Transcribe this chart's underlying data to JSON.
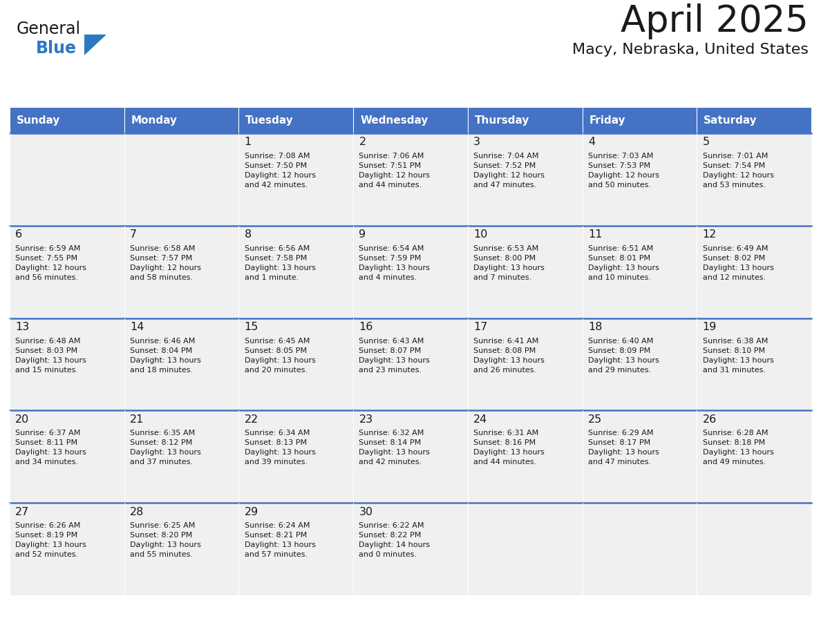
{
  "title": "April 2025",
  "subtitle": "Macy, Nebraska, United States",
  "header_bg": "#4472C4",
  "header_text_color": "#FFFFFF",
  "cell_bg": "#F0F0F0",
  "cell_bg_white": "#FFFFFF",
  "border_color": "#4472C4",
  "text_color": "#1a1a1a",
  "days_of_week": [
    "Sunday",
    "Monday",
    "Tuesday",
    "Wednesday",
    "Thursday",
    "Friday",
    "Saturday"
  ],
  "weeks": [
    [
      {
        "day": "",
        "info": ""
      },
      {
        "day": "",
        "info": ""
      },
      {
        "day": "1",
        "info": "Sunrise: 7:08 AM\nSunset: 7:50 PM\nDaylight: 12 hours\nand 42 minutes."
      },
      {
        "day": "2",
        "info": "Sunrise: 7:06 AM\nSunset: 7:51 PM\nDaylight: 12 hours\nand 44 minutes."
      },
      {
        "day": "3",
        "info": "Sunrise: 7:04 AM\nSunset: 7:52 PM\nDaylight: 12 hours\nand 47 minutes."
      },
      {
        "day": "4",
        "info": "Sunrise: 7:03 AM\nSunset: 7:53 PM\nDaylight: 12 hours\nand 50 minutes."
      },
      {
        "day": "5",
        "info": "Sunrise: 7:01 AM\nSunset: 7:54 PM\nDaylight: 12 hours\nand 53 minutes."
      }
    ],
    [
      {
        "day": "6",
        "info": "Sunrise: 6:59 AM\nSunset: 7:55 PM\nDaylight: 12 hours\nand 56 minutes."
      },
      {
        "day": "7",
        "info": "Sunrise: 6:58 AM\nSunset: 7:57 PM\nDaylight: 12 hours\nand 58 minutes."
      },
      {
        "day": "8",
        "info": "Sunrise: 6:56 AM\nSunset: 7:58 PM\nDaylight: 13 hours\nand 1 minute."
      },
      {
        "day": "9",
        "info": "Sunrise: 6:54 AM\nSunset: 7:59 PM\nDaylight: 13 hours\nand 4 minutes."
      },
      {
        "day": "10",
        "info": "Sunrise: 6:53 AM\nSunset: 8:00 PM\nDaylight: 13 hours\nand 7 minutes."
      },
      {
        "day": "11",
        "info": "Sunrise: 6:51 AM\nSunset: 8:01 PM\nDaylight: 13 hours\nand 10 minutes."
      },
      {
        "day": "12",
        "info": "Sunrise: 6:49 AM\nSunset: 8:02 PM\nDaylight: 13 hours\nand 12 minutes."
      }
    ],
    [
      {
        "day": "13",
        "info": "Sunrise: 6:48 AM\nSunset: 8:03 PM\nDaylight: 13 hours\nand 15 minutes."
      },
      {
        "day": "14",
        "info": "Sunrise: 6:46 AM\nSunset: 8:04 PM\nDaylight: 13 hours\nand 18 minutes."
      },
      {
        "day": "15",
        "info": "Sunrise: 6:45 AM\nSunset: 8:05 PM\nDaylight: 13 hours\nand 20 minutes."
      },
      {
        "day": "16",
        "info": "Sunrise: 6:43 AM\nSunset: 8:07 PM\nDaylight: 13 hours\nand 23 minutes."
      },
      {
        "day": "17",
        "info": "Sunrise: 6:41 AM\nSunset: 8:08 PM\nDaylight: 13 hours\nand 26 minutes."
      },
      {
        "day": "18",
        "info": "Sunrise: 6:40 AM\nSunset: 8:09 PM\nDaylight: 13 hours\nand 29 minutes."
      },
      {
        "day": "19",
        "info": "Sunrise: 6:38 AM\nSunset: 8:10 PM\nDaylight: 13 hours\nand 31 minutes."
      }
    ],
    [
      {
        "day": "20",
        "info": "Sunrise: 6:37 AM\nSunset: 8:11 PM\nDaylight: 13 hours\nand 34 minutes."
      },
      {
        "day": "21",
        "info": "Sunrise: 6:35 AM\nSunset: 8:12 PM\nDaylight: 13 hours\nand 37 minutes."
      },
      {
        "day": "22",
        "info": "Sunrise: 6:34 AM\nSunset: 8:13 PM\nDaylight: 13 hours\nand 39 minutes."
      },
      {
        "day": "23",
        "info": "Sunrise: 6:32 AM\nSunset: 8:14 PM\nDaylight: 13 hours\nand 42 minutes."
      },
      {
        "day": "24",
        "info": "Sunrise: 6:31 AM\nSunset: 8:16 PM\nDaylight: 13 hours\nand 44 minutes."
      },
      {
        "day": "25",
        "info": "Sunrise: 6:29 AM\nSunset: 8:17 PM\nDaylight: 13 hours\nand 47 minutes."
      },
      {
        "day": "26",
        "info": "Sunrise: 6:28 AM\nSunset: 8:18 PM\nDaylight: 13 hours\nand 49 minutes."
      }
    ],
    [
      {
        "day": "27",
        "info": "Sunrise: 6:26 AM\nSunset: 8:19 PM\nDaylight: 13 hours\nand 52 minutes."
      },
      {
        "day": "28",
        "info": "Sunrise: 6:25 AM\nSunset: 8:20 PM\nDaylight: 13 hours\nand 55 minutes."
      },
      {
        "day": "29",
        "info": "Sunrise: 6:24 AM\nSunset: 8:21 PM\nDaylight: 13 hours\nand 57 minutes."
      },
      {
        "day": "30",
        "info": "Sunrise: 6:22 AM\nSunset: 8:22 PM\nDaylight: 14 hours\nand 0 minutes."
      },
      {
        "day": "",
        "info": ""
      },
      {
        "day": "",
        "info": ""
      },
      {
        "day": "",
        "info": ""
      }
    ]
  ],
  "logo_color_general": "#1a1a1a",
  "logo_color_blue": "#2B79C2",
  "logo_triangle_color": "#2B79C2",
  "fig_width": 11.88,
  "fig_height": 9.18,
  "dpi": 100
}
